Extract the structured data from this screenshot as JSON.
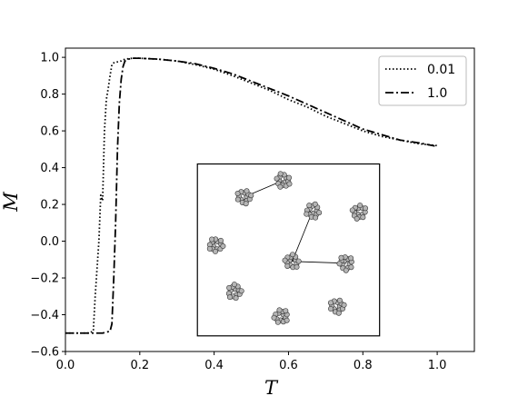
{
  "chart_data": {
    "type": "line",
    "xlabel": "T",
    "ylabel": "M",
    "xlim": [
      0.0,
      1.1
    ],
    "ylim": [
      -0.6,
      1.05
    ],
    "xticks": [
      0.0,
      0.2,
      0.4,
      0.6,
      0.8,
      1.0
    ],
    "xtick_labels": [
      "0.0",
      "0.2",
      "0.4",
      "0.6",
      "0.8",
      "1.0"
    ],
    "yticks": [
      -0.6,
      -0.4,
      -0.2,
      0.0,
      0.2,
      0.4,
      0.6,
      0.8,
      1.0
    ],
    "ytick_labels": [
      "−0.6",
      "−0.4",
      "−0.2",
      "0.0",
      "0.2",
      "0.4",
      "0.6",
      "0.8",
      "1.0"
    ],
    "grid": false,
    "legend_position": "top-right",
    "series": [
      {
        "name": "0.01",
        "style": "dotted",
        "color": "#000000",
        "x": [
          0.0,
          0.06,
          0.075,
          0.08,
          0.09,
          0.095,
          0.1,
          0.105,
          0.11,
          0.115,
          0.12,
          0.125,
          0.13,
          0.14,
          0.15,
          0.16,
          0.18,
          0.2,
          0.25,
          0.3,
          0.35,
          0.4,
          0.45,
          0.5,
          0.55,
          0.6,
          0.65,
          0.7,
          0.75,
          0.8,
          0.85,
          0.9,
          0.95,
          1.0
        ],
        "y": [
          -0.5,
          -0.5,
          -0.49,
          -0.3,
          0.0,
          0.25,
          0.22,
          0.6,
          0.77,
          0.83,
          0.9,
          0.96,
          0.97,
          0.975,
          0.98,
          0.99,
          0.995,
          0.995,
          0.99,
          0.98,
          0.96,
          0.935,
          0.9,
          0.86,
          0.82,
          0.77,
          0.73,
          0.68,
          0.64,
          0.6,
          0.57,
          0.55,
          0.53,
          0.52
        ]
      },
      {
        "name": "1.0",
        "style": "dashdot",
        "color": "#000000",
        "x": [
          0.0,
          0.1,
          0.12,
          0.125,
          0.13,
          0.135,
          0.14,
          0.145,
          0.15,
          0.155,
          0.16,
          0.17,
          0.18,
          0.2,
          0.25,
          0.3,
          0.35,
          0.4,
          0.45,
          0.5,
          0.55,
          0.6,
          0.65,
          0.7,
          0.75,
          0.8,
          0.85,
          0.9,
          0.95,
          1.0
        ],
        "y": [
          -0.5,
          -0.5,
          -0.49,
          -0.45,
          -0.2,
          0.1,
          0.5,
          0.75,
          0.88,
          0.95,
          0.98,
          0.99,
          0.995,
          0.995,
          0.99,
          0.98,
          0.965,
          0.94,
          0.91,
          0.87,
          0.83,
          0.79,
          0.745,
          0.7,
          0.655,
          0.61,
          0.58,
          0.55,
          0.535,
          0.515
        ]
      }
    ],
    "inset": {
      "description_free": true,
      "nodes_per_cluster": 14,
      "clusters": [
        {
          "cx": 0.48,
          "cy": 0.24
        },
        {
          "cx": 0.585,
          "cy": 0.33
        },
        {
          "cx": 0.665,
          "cy": 0.165
        },
        {
          "cx": 0.79,
          "cy": 0.16
        },
        {
          "cx": 0.405,
          "cy": -0.02
        },
        {
          "cx": 0.61,
          "cy": -0.11
        },
        {
          "cx": 0.755,
          "cy": -0.12
        },
        {
          "cx": 0.455,
          "cy": -0.275
        },
        {
          "cx": 0.58,
          "cy": -0.41
        },
        {
          "cx": 0.73,
          "cy": -0.355
        }
      ],
      "links": [
        [
          0,
          1
        ],
        [
          2,
          5
        ],
        [
          5,
          6
        ]
      ],
      "bounds": {
        "x": [
          0.355,
          0.845
        ],
        "y": [
          -0.515,
          0.42
        ]
      }
    }
  }
}
